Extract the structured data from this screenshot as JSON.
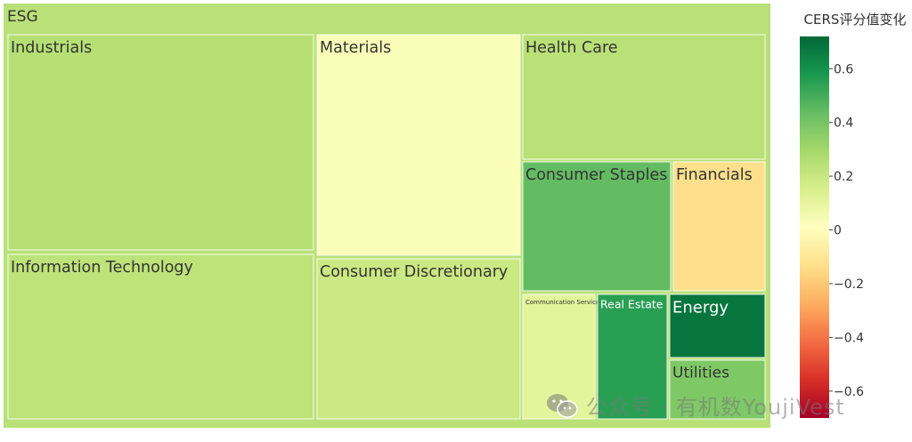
{
  "watermark": {
    "text": "公众号 · 有机数YoujiVest",
    "icon": "wechat-icon"
  },
  "chart_data": {
    "type": "treemap",
    "root_label": "ESG",
    "colorbar": {
      "title": "CERS评分值变化",
      "range": [
        -0.7,
        0.72
      ],
      "ticks": [
        "0.6",
        "0.4",
        "0.2",
        "0",
        "−0.2",
        "−0.4",
        "−0.6"
      ],
      "tick_values": [
        0.6,
        0.4,
        0.2,
        0,
        -0.2,
        -0.4,
        -0.6
      ],
      "colorscale": [
        "#a50026",
        "#d73027",
        "#f46d43",
        "#fdae61",
        "#fee08b",
        "#ffffbf",
        "#d9ef8b",
        "#a6d96a",
        "#66bd63",
        "#1a9850",
        "#006837"
      ]
    },
    "nodes": [
      {
        "label": "Industrials",
        "value": 0.25
      },
      {
        "label": "Information Technology",
        "value": 0.23
      },
      {
        "label": "Materials",
        "value": 0.03
      },
      {
        "label": "Consumer Discretionary",
        "value": 0.19
      },
      {
        "label": "Health Care",
        "value": 0.24
      },
      {
        "label": "Consumer Staples",
        "value": 0.44
      },
      {
        "label": "Financials",
        "value": -0.13
      },
      {
        "label": "Communication Services",
        "value": 0.11
      },
      {
        "label": "Real Estate",
        "value": 0.55
      },
      {
        "label": "Energy",
        "value": 0.68
      },
      {
        "label": "Utilities",
        "value": 0.38
      }
    ],
    "root_value": 0.24
  }
}
